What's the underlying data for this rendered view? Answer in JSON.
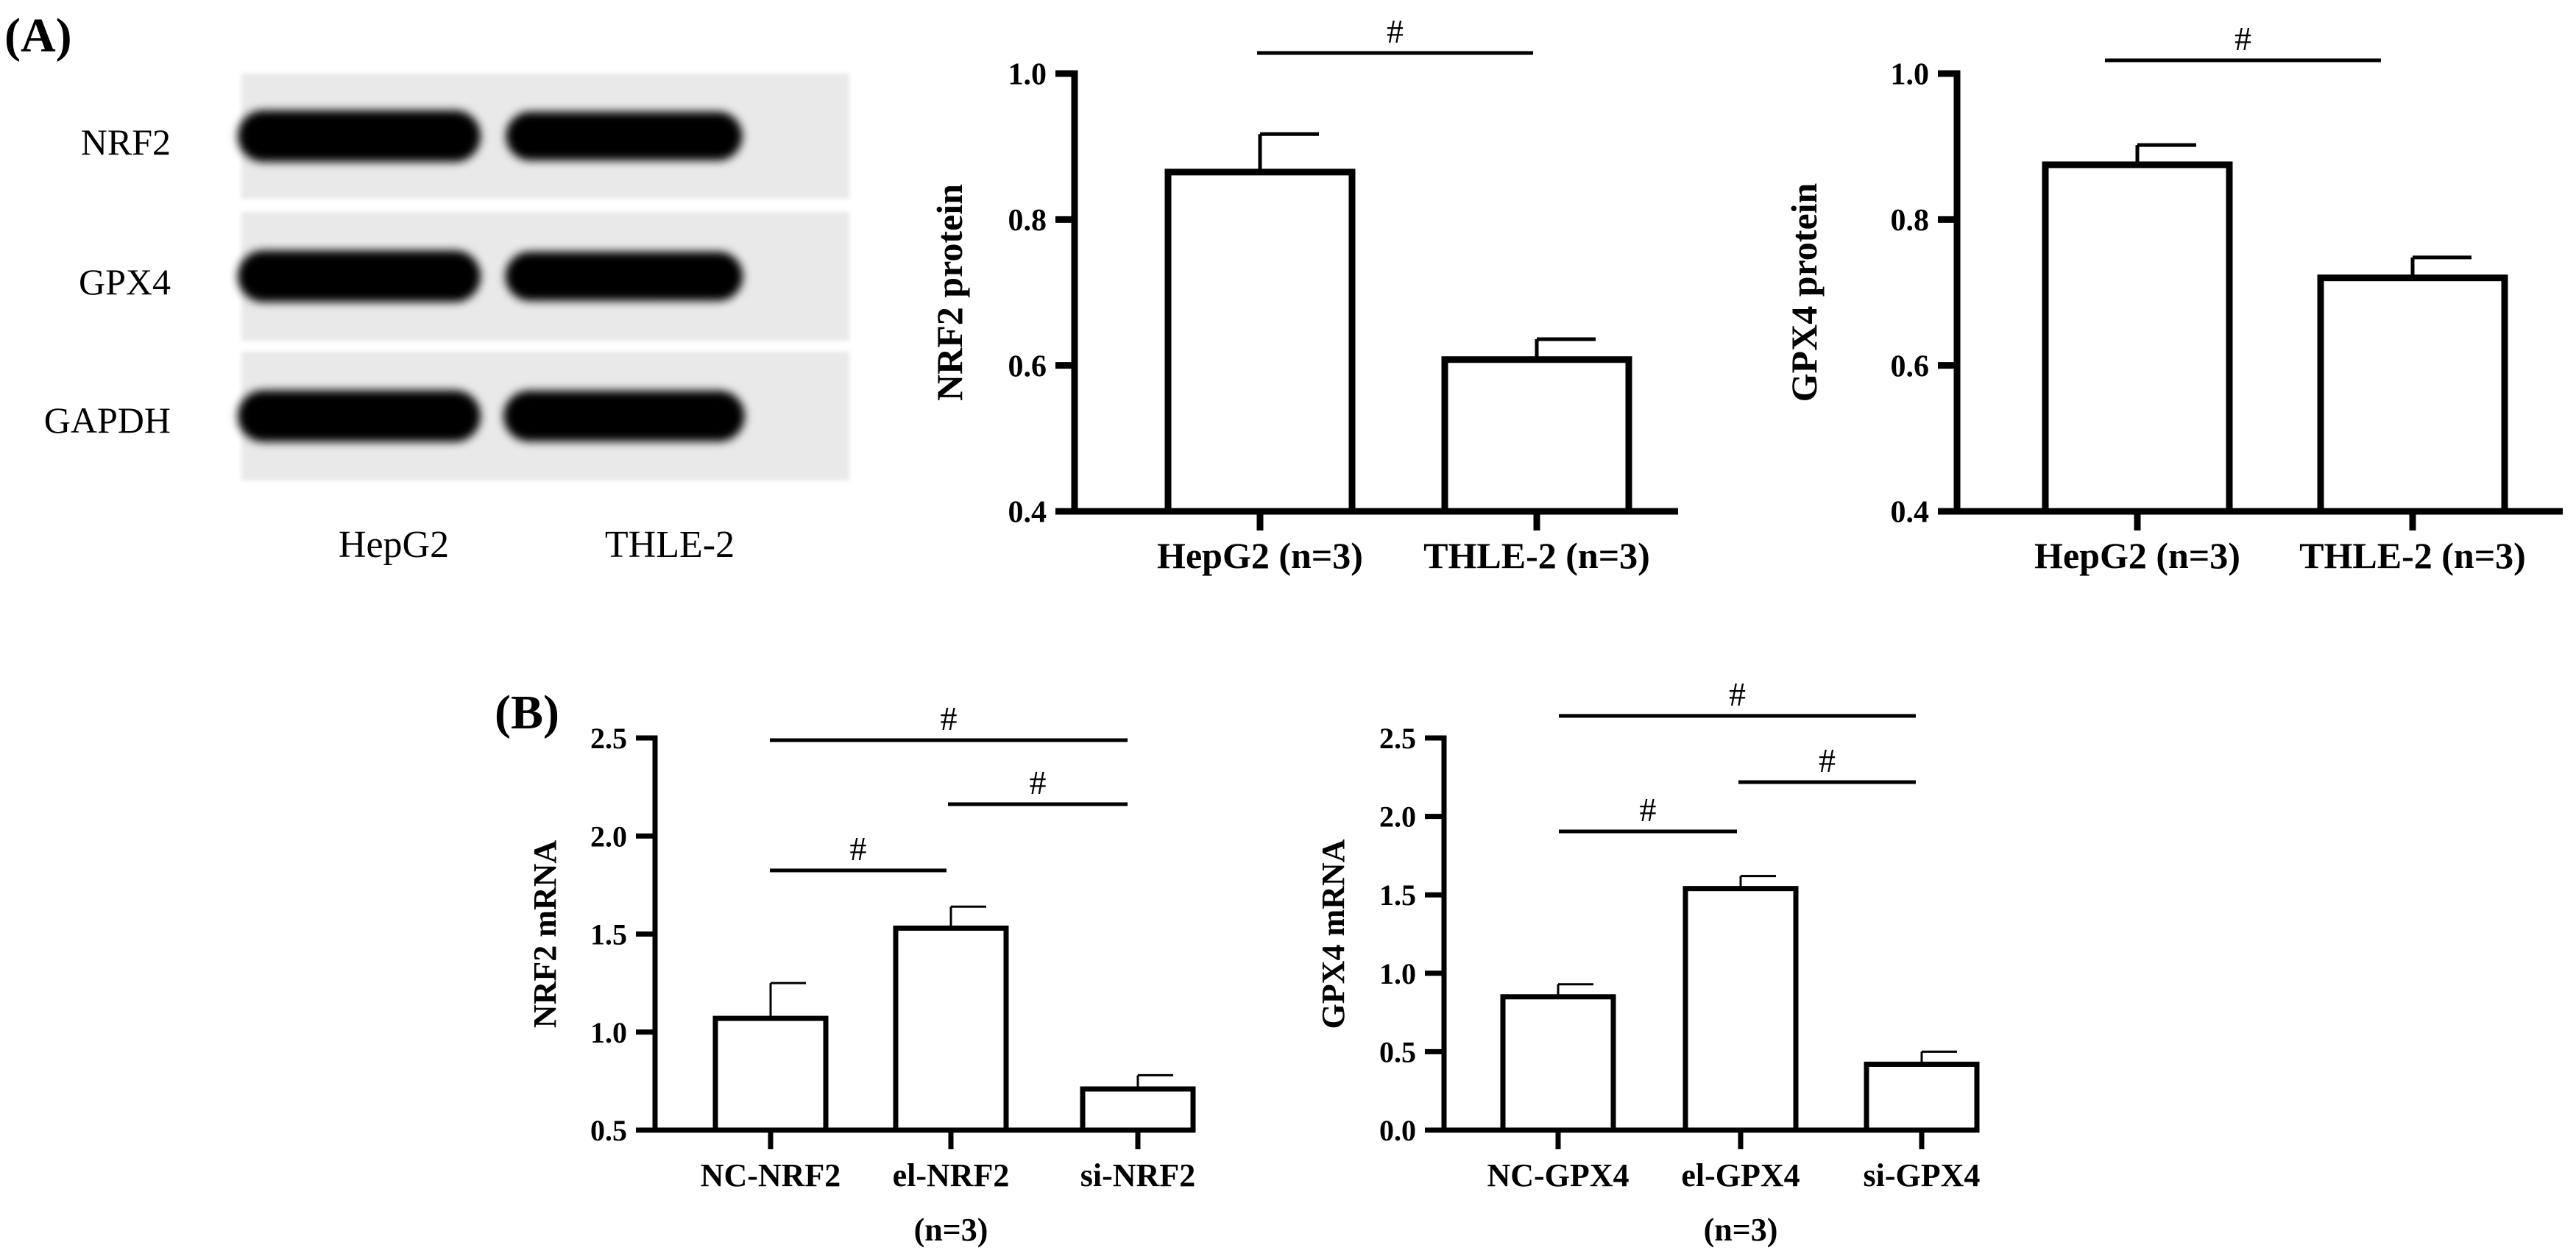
{
  "panels": {
    "a": "(A)",
    "b": "(B)"
  },
  "blot": {
    "rows": [
      "NRF2",
      "GPX4",
      "GAPDH"
    ],
    "lanes": [
      "HepG2",
      "THLE-2"
    ],
    "band_strength": [
      [
        1.0,
        0.82
      ],
      [
        1.0,
        0.85
      ],
      [
        1.0,
        0.95
      ]
    ]
  },
  "colors": {
    "bar_fill": "#ffffff",
    "stroke": "#000000",
    "band": "#050505",
    "blot_bg": "#e9e9e9"
  },
  "chart_data": [
    {
      "id": "nrf2-protein",
      "type": "bar",
      "categories": [
        "HepG2 (n=3)",
        "THLE-2 (n=3)"
      ],
      "values": [
        0.865,
        0.608
      ],
      "errors": [
        0.052,
        0.028
      ],
      "ylabel": "NRF2 protein",
      "xlabel": "",
      "ylim": [
        0.4,
        1.0
      ],
      "yticks": [
        "0.4",
        "0.6",
        "0.8",
        "1.0"
      ],
      "significance": [
        {
          "from": 0,
          "to": 1,
          "label": "#"
        }
      ]
    },
    {
      "id": "gpx4-protein",
      "type": "bar",
      "categories": [
        "HepG2 (n=3)",
        "THLE-2 (n=3)"
      ],
      "values": [
        0.875,
        0.72
      ],
      "errors": [
        0.027,
        0.028
      ],
      "ylabel": "GPX4 protein",
      "xlabel": "",
      "ylim": [
        0.4,
        1.0
      ],
      "yticks": [
        "0.4",
        "0.6",
        "0.8",
        "1.0"
      ],
      "significance": [
        {
          "from": 0,
          "to": 1,
          "label": "#"
        }
      ]
    },
    {
      "id": "nrf2-mrna",
      "type": "bar",
      "categories": [
        "NC-NRF2",
        "el-NRF2",
        "si-NRF2"
      ],
      "values": [
        1.07,
        1.53,
        0.71
      ],
      "errors": [
        0.18,
        0.11,
        0.07
      ],
      "ylabel": "NRF2 mRNA",
      "xlabel": "(n=3)",
      "ylim": [
        0.5,
        2.5
      ],
      "yticks": [
        "0.5",
        "1.0",
        "1.5",
        "2.0",
        "2.5"
      ],
      "significance": [
        {
          "from": 0,
          "to": 1,
          "label": "#"
        },
        {
          "from": 1,
          "to": 2,
          "label": "#"
        },
        {
          "from": 0,
          "to": 2,
          "label": "#"
        }
      ]
    },
    {
      "id": "gpx4-mrna",
      "type": "bar",
      "categories": [
        "NC-GPX4",
        "el-GPX4",
        "si-GPX4"
      ],
      "values": [
        0.85,
        1.54,
        0.42
      ],
      "errors": [
        0.08,
        0.08,
        0.08
      ],
      "ylabel": "GPX4 mRNA",
      "xlabel": "(n=3)",
      "ylim": [
        0.0,
        2.5
      ],
      "yticks": [
        "0.0",
        "0.5",
        "1.0",
        "1.5",
        "2.0",
        "2.5"
      ],
      "significance": [
        {
          "from": 0,
          "to": 1,
          "label": "#"
        },
        {
          "from": 1,
          "to": 2,
          "label": "#"
        },
        {
          "from": 0,
          "to": 2,
          "label": "#"
        }
      ]
    }
  ]
}
